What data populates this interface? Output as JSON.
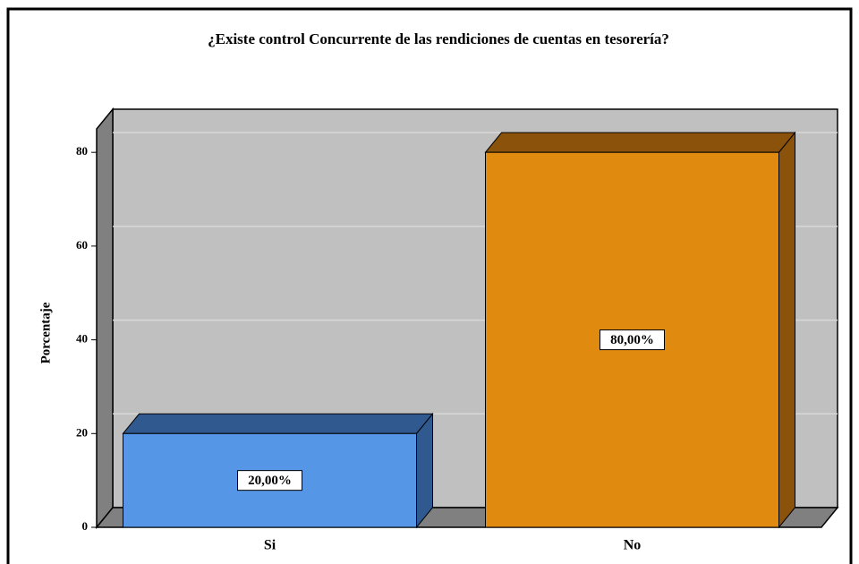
{
  "chart_data": {
    "type": "bar3d",
    "title": "¿Existe control Concurrente de las rendiciones de cuentas en tesorería?",
    "y_label": "Porcentaje",
    "categories": [
      "Si",
      "No"
    ],
    "series": [
      {
        "name": "Porcentaje",
        "colors": [
          "#5596e6",
          "#e08a10"
        ],
        "top_colors": [
          "#30598f",
          "#8a520a"
        ],
        "values": [
          20,
          80
        ],
        "value_labels": [
          "20,00%",
          "80,00%"
        ]
      }
    ],
    "ylim": [
      0,
      85
    ],
    "yticks": [
      0,
      20,
      40,
      60,
      80
    ],
    "grid": true
  }
}
